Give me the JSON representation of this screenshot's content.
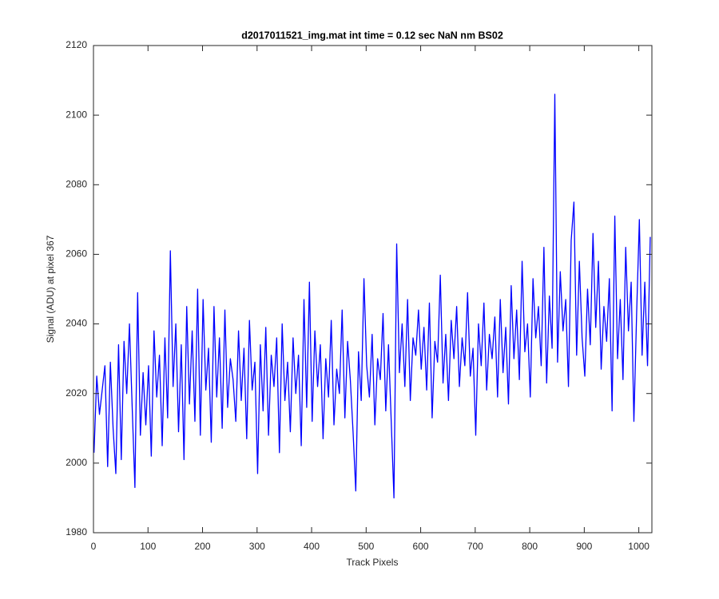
{
  "chart_data": {
    "type": "line",
    "title": "d2017011521_img.mat int time = 0.12 sec  NaN nm BS02",
    "xlabel": "Track Pixels",
    "ylabel": "Signal (ADU) at pixel 367",
    "color": "#0000ff",
    "xlim": [
      0,
      1024
    ],
    "ylim": [
      1980,
      2120
    ],
    "xticks": [
      0,
      100,
      200,
      300,
      400,
      500,
      600,
      700,
      800,
      900,
      1000
    ],
    "yticks": [
      1980,
      2000,
      2020,
      2040,
      2060,
      2080,
      2100,
      2120
    ],
    "x": [
      1,
      6,
      11,
      16,
      21,
      26,
      31,
      36,
      41,
      46,
      51,
      56,
      61,
      66,
      71,
      76,
      81,
      86,
      91,
      96,
      101,
      106,
      111,
      116,
      121,
      126,
      131,
      136,
      141,
      146,
      151,
      156,
      161,
      166,
      171,
      176,
      181,
      186,
      191,
      196,
      201,
      206,
      211,
      216,
      221,
      226,
      231,
      236,
      241,
      246,
      251,
      256,
      261,
      266,
      271,
      276,
      281,
      286,
      291,
      296,
      301,
      306,
      311,
      316,
      321,
      326,
      331,
      336,
      341,
      346,
      351,
      356,
      361,
      366,
      371,
      376,
      381,
      386,
      391,
      396,
      401,
      406,
      411,
      416,
      421,
      426,
      431,
      436,
      441,
      446,
      451,
      456,
      461,
      466,
      471,
      476,
      481,
      486,
      491,
      496,
      501,
      506,
      511,
      516,
      521,
      526,
      531,
      536,
      541,
      546,
      551,
      556,
      561,
      566,
      571,
      576,
      581,
      586,
      591,
      596,
      601,
      606,
      611,
      616,
      621,
      626,
      631,
      636,
      641,
      646,
      651,
      656,
      661,
      666,
      671,
      676,
      681,
      686,
      691,
      696,
      701,
      706,
      711,
      716,
      721,
      726,
      731,
      736,
      741,
      746,
      751,
      756,
      761,
      766,
      771,
      776,
      781,
      786,
      791,
      796,
      801,
      806,
      811,
      816,
      821,
      826,
      831,
      836,
      841,
      846,
      851,
      856,
      861,
      866,
      871,
      876,
      881,
      886,
      891,
      896,
      901,
      906,
      911,
      916,
      921,
      926,
      931,
      936,
      941,
      946,
      951,
      956,
      961,
      966,
      971,
      976,
      981,
      986,
      991,
      996,
      1001,
      1006,
      1011,
      1016,
      1021
    ],
    "values": [
      2003,
      2025,
      2014,
      2021,
      2028,
      1999,
      2029,
      2010,
      1997,
      2034,
      2001,
      2035,
      2020,
      2040,
      2016,
      1993,
      2049,
      2008,
      2026,
      2011,
      2028,
      2002,
      2038,
      2019,
      2031,
      2005,
      2036,
      2013,
      2061,
      2022,
      2040,
      2009,
      2034,
      2001,
      2045,
      2017,
      2038,
      2012,
      2050,
      2008,
      2047,
      2021,
      2033,
      2006,
      2045,
      2019,
      2036,
      2010,
      2044,
      2016,
      2030,
      2024,
      2012,
      2038,
      2018,
      2033,
      2007,
      2041,
      2021,
      2029,
      1997,
      2034,
      2015,
      2039,
      2008,
      2031,
      2022,
      2036,
      2003,
      2040,
      2018,
      2029,
      2009,
      2036,
      2020,
      2031,
      2005,
      2047,
      2016,
      2052,
      2012,
      2038,
      2022,
      2034,
      2007,
      2030,
      2019,
      2041,
      2011,
      2027,
      2020,
      2044,
      2013,
      2035,
      2024,
      2009,
      1992,
      2032,
      2018,
      2053,
      2028,
      2019,
      2037,
      2011,
      2030,
      2024,
      2043,
      2015,
      2034,
      2012,
      1990,
      2063,
      2026,
      2040,
      2022,
      2047,
      2018,
      2036,
      2031,
      2044,
      2027,
      2039,
      2021,
      2046,
      2013,
      2035,
      2029,
      2054,
      2023,
      2037,
      2018,
      2041,
      2030,
      2045,
      2022,
      2036,
      2028,
      2049,
      2025,
      2033,
      2008,
      2040,
      2028,
      2046,
      2021,
      2037,
      2030,
      2042,
      2019,
      2047,
      2026,
      2039,
      2017,
      2051,
      2030,
      2044,
      2024,
      2058,
      2032,
      2040,
      2019,
      2053,
      2036,
      2045,
      2028,
      2062,
      2023,
      2048,
      2033,
      2106,
      2029,
      2055,
      2038,
      2047,
      2022,
      2064,
      2075,
      2031,
      2058,
      2036,
      2025,
      2050,
      2034,
      2066,
      2039,
      2058,
      2027,
      2045,
      2035,
      2053,
      2015,
      2071,
      2030,
      2047,
      2024,
      2062,
      2038,
      2052,
      2012,
      2043,
      2070,
      2031,
      2052,
      2028,
      2065
    ]
  }
}
